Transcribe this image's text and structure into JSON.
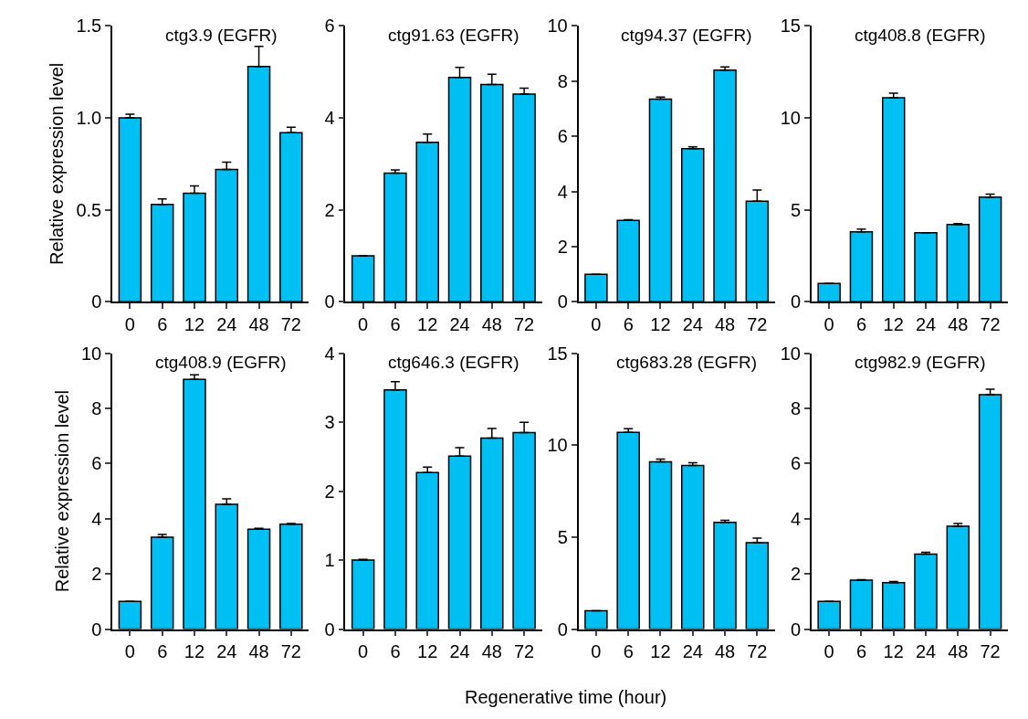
{
  "chart_data": [
    {
      "type": "bar",
      "title": "ctg3.9 (EGFR)",
      "ylabel": "Relative expression level",
      "categories": [
        "0",
        "6",
        "12",
        "24",
        "48",
        "72"
      ],
      "values": [
        1.0,
        0.53,
        0.59,
        0.72,
        1.28,
        0.92
      ],
      "errors": [
        [
          1.0,
          1.02
        ],
        [
          0.53,
          0.56
        ],
        [
          0.59,
          0.63
        ],
        [
          0.72,
          0.76
        ],
        [
          1.28,
          1.39
        ],
        [
          0.92,
          0.95
        ]
      ],
      "color": "#00bff3",
      "ylim": [
        0,
        1.5
      ],
      "yticks": [
        0,
        0.5,
        {
          "value": 1.0,
          "label": "1.0"
        },
        1.5
      ]
    },
    {
      "type": "bar",
      "title": "ctg91.63 (EGFR)",
      "categories": [
        "0",
        "6",
        "12",
        "24",
        "48",
        "72"
      ],
      "values": [
        1.0,
        2.8,
        3.47,
        4.88,
        4.73,
        4.52
      ],
      "errors": [
        null,
        [
          2.8,
          2.87
        ],
        [
          3.47,
          3.65
        ],
        [
          4.88,
          5.1
        ],
        [
          4.73,
          4.95
        ],
        [
          4.52,
          4.65
        ]
      ],
      "color": "#00bff3",
      "ylim": [
        0,
        6
      ],
      "yticks": [
        0,
        2,
        4,
        6
      ]
    },
    {
      "type": "bar",
      "title": "ctg94.37 (EGFR)",
      "categories": [
        "0",
        "6",
        "12",
        "24",
        "48",
        "72"
      ],
      "values": [
        1.0,
        2.95,
        7.35,
        5.55,
        8.4,
        3.65
      ],
      "errors": [
        null,
        [
          2.95,
          2.98
        ],
        [
          7.35,
          7.42
        ],
        [
          5.55,
          5.62
        ],
        [
          8.4,
          8.52
        ],
        [
          3.65,
          4.05
        ]
      ],
      "color": "#00bff3",
      "ylim": [
        0,
        10
      ],
      "yticks": [
        0,
        2,
        4,
        6,
        8,
        10
      ]
    },
    {
      "type": "bar",
      "title": "ctg408.8 (EGFR)",
      "categories": [
        "0",
        "6",
        "12",
        "24",
        "48",
        "72"
      ],
      "values": [
        1.0,
        3.8,
        11.1,
        3.75,
        4.2,
        5.7
      ],
      "errors": [
        null,
        [
          3.8,
          3.95
        ],
        [
          11.1,
          11.35
        ],
        null,
        [
          4.2,
          4.25
        ],
        [
          5.7,
          5.85
        ]
      ],
      "color": "#00bff3",
      "ylim": [
        0,
        15
      ],
      "yticks": [
        0,
        5,
        10,
        15
      ]
    },
    {
      "type": "bar",
      "title": "ctg408.9 (EGFR)",
      "ylabel": "Relative expression level",
      "categories": [
        "0",
        "6",
        "12",
        "24",
        "48",
        "72"
      ],
      "values": [
        1.0,
        3.33,
        9.05,
        4.52,
        3.62,
        3.8
      ],
      "errors": [
        null,
        [
          3.33,
          3.43
        ],
        [
          9.05,
          9.22
        ],
        [
          4.52,
          4.72
        ],
        [
          3.62,
          3.65
        ],
        [
          3.8,
          3.83
        ]
      ],
      "color": "#00bff3",
      "ylim": [
        0,
        10
      ],
      "yticks": [
        0,
        2,
        4,
        6,
        8,
        10
      ]
    },
    {
      "type": "bar",
      "title": "ctg646.3 (EGFR)",
      "xlabel": "Regenerative time (hour)",
      "categories": [
        "0",
        "6",
        "12",
        "24",
        "48",
        "72"
      ],
      "values": [
        1.0,
        3.47,
        2.27,
        2.51,
        2.77,
        2.85
      ],
      "errors": [
        [
          1.0,
          1.01
        ],
        [
          3.47,
          3.59
        ],
        [
          2.27,
          2.35
        ],
        [
          2.51,
          2.63
        ],
        [
          2.77,
          2.91
        ],
        [
          2.85,
          3.0
        ]
      ],
      "color": "#00bff3",
      "ylim": [
        0,
        4
      ],
      "yticks": [
        0,
        1,
        2,
        3,
        4
      ]
    },
    {
      "type": "bar",
      "title": "ctg683.28 (EGFR)",
      "categories": [
        "0",
        "6",
        "12",
        "24",
        "48",
        "72"
      ],
      "values": [
        1.0,
        10.7,
        9.1,
        8.9,
        5.8,
        4.7
      ],
      "errors": [
        null,
        [
          10.7,
          10.9
        ],
        [
          9.1,
          9.25
        ],
        [
          8.9,
          9.05
        ],
        [
          5.8,
          5.92
        ],
        [
          4.7,
          4.95
        ]
      ],
      "color": "#00bff3",
      "ylim": [
        0,
        15
      ],
      "yticks": [
        0,
        5,
        10,
        15
      ]
    },
    {
      "type": "bar",
      "title": "ctg982.9 (EGFR)",
      "categories": [
        "0",
        "6",
        "12",
        "24",
        "48",
        "72"
      ],
      "values": [
        1.0,
        1.77,
        1.68,
        2.72,
        3.73,
        8.5
      ],
      "errors": [
        null,
        [
          1.77,
          1.79
        ],
        [
          1.68,
          1.72
        ],
        [
          2.72,
          2.78
        ],
        [
          3.73,
          3.83
        ],
        [
          8.5,
          8.7
        ]
      ],
      "color": "#00bff3",
      "ylim": [
        0,
        10
      ],
      "yticks": [
        0,
        2,
        4,
        6,
        8,
        10
      ]
    }
  ]
}
